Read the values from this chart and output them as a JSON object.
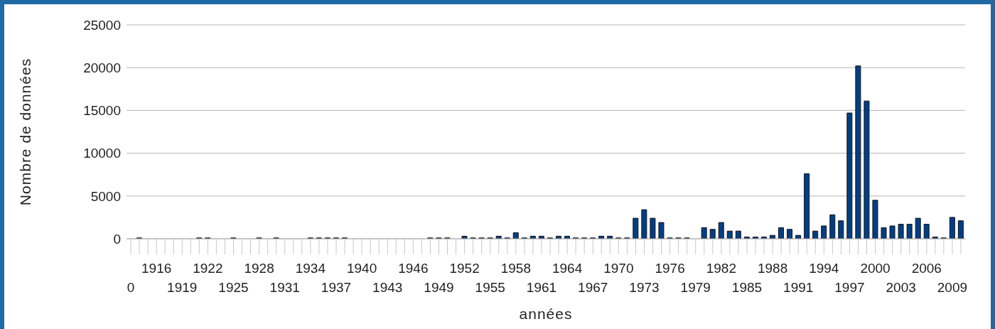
{
  "chart_data": {
    "type": "bar",
    "xlabel": "années",
    "ylabel": "Nombre de données",
    "categories": [
      "0",
      null,
      null,
      "1916",
      null,
      null,
      "1919",
      null,
      null,
      "1922",
      null,
      null,
      "1925",
      null,
      null,
      "1928",
      null,
      null,
      "1931",
      null,
      null,
      "1934",
      null,
      null,
      "1937",
      null,
      null,
      "1940",
      null,
      null,
      "1943",
      null,
      null,
      "1946",
      null,
      null,
      "1949",
      null,
      null,
      "1952",
      null,
      null,
      "1955",
      null,
      null,
      "1958",
      null,
      null,
      "1961",
      null,
      null,
      "1964",
      null,
      null,
      "1967",
      null,
      null,
      "1970",
      null,
      null,
      "1973",
      null,
      null,
      "1976",
      null,
      null,
      "1979",
      null,
      null,
      "1982",
      null,
      null,
      "1985",
      null,
      null,
      "1988",
      null,
      null,
      "1991",
      null,
      null,
      "1994",
      null,
      null,
      "1997",
      null,
      null,
      "2000",
      null,
      null,
      "2003",
      null,
      null,
      "2006",
      null,
      null,
      "2009",
      null
    ],
    "values": [
      null,
      100,
      null,
      null,
      null,
      null,
      null,
      null,
      100,
      100,
      null,
      null,
      100,
      null,
      null,
      100,
      null,
      100,
      null,
      null,
      null,
      100,
      100,
      100,
      100,
      100,
      null,
      null,
      null,
      null,
      null,
      null,
      null,
      null,
      null,
      100,
      100,
      100,
      null,
      300,
      100,
      100,
      100,
      300,
      100,
      700,
      100,
      300,
      300,
      100,
      300,
      300,
      100,
      100,
      100,
      300,
      300,
      100,
      100,
      2400,
      3400,
      2400,
      1900,
      100,
      100,
      100,
      null,
      1300,
      1100,
      1900,
      900,
      900,
      200,
      200,
      200,
      400,
      1300,
      1100,
      400,
      7600,
      900,
      1500,
      2800,
      2100,
      14700,
      20200,
      16100,
      4500,
      1300,
      1500,
      1700,
      1700,
      2400,
      1700,
      200,
      100,
      2500,
      2100
    ],
    "color": "#003f87",
    "ylim": [
      0,
      25000
    ],
    "yticks": [
      0,
      5000,
      10000,
      15000,
      20000,
      25000
    ],
    "grid": "y"
  }
}
